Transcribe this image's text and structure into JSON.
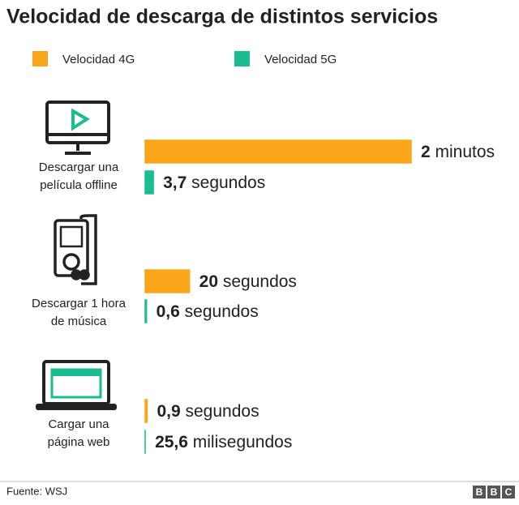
{
  "chart_data": {
    "type": "bar",
    "title": "Velocidad de descarga de distintos servicios",
    "categories": [
      "Descargar una\npelícula offline",
      "Descargar 1 hora\nde música",
      "Cargar una\npágina web"
    ],
    "series": [
      {
        "name": "Velocidad 4G",
        "color": "#f9a61a",
        "values": [
          120,
          20,
          0.9
        ],
        "value_labels": [
          "2 minutos",
          "20 segundos",
          "0,9 segundos"
        ]
      },
      {
        "name": "Velocidad 5G",
        "color": "#1bbc8f",
        "values": [
          3.7,
          0.6,
          0.0256
        ],
        "value_labels": [
          "3,7 segundos",
          "0,6 segundos",
          "25,6 milisegundos"
        ]
      }
    ],
    "source": "Fuente: WSJ",
    "logo": [
      "B",
      "B",
      "C"
    ]
  }
}
